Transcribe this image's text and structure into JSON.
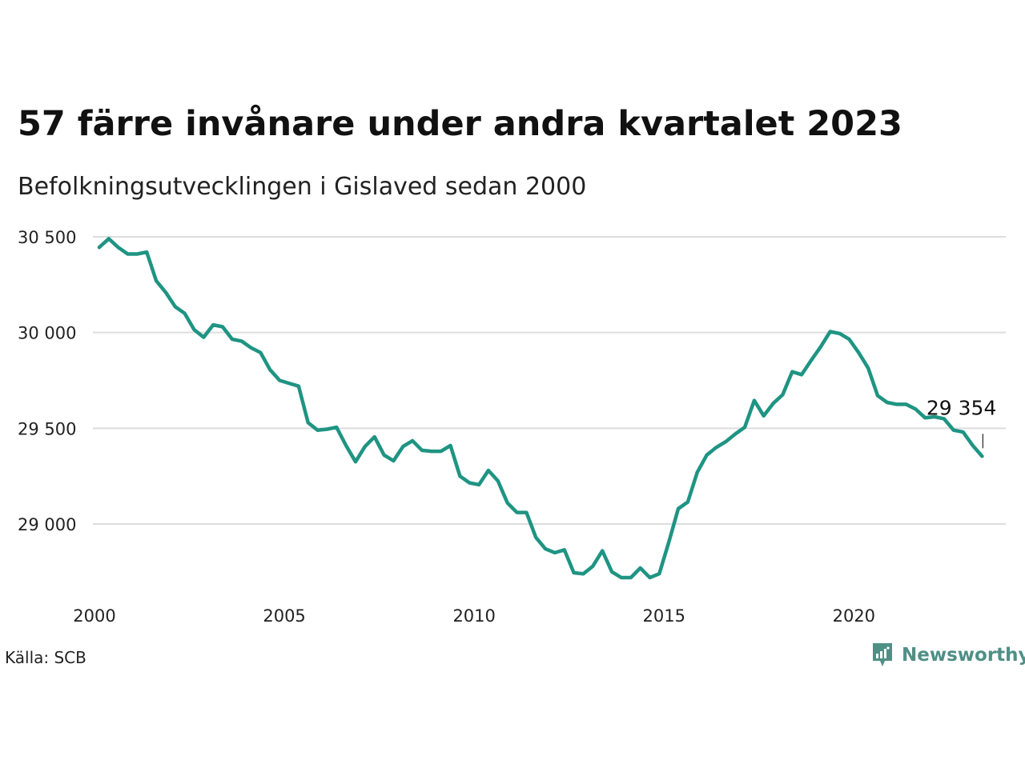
{
  "header": {
    "title": "57 färre invånare under andra kvartalet 2023",
    "subtitle": "Befolkningsutvecklingen i Gislaved sedan 2000"
  },
  "footer": {
    "source": "Källa: SCB",
    "brand": "Newsworthy",
    "brand_icon": "newsworthy-logo-icon"
  },
  "colors": {
    "line": "#1f9483",
    "grid": "#dddddd",
    "brand": "#4f8f86"
  },
  "chart_data": {
    "type": "line",
    "title": "57 färre invånare under andra kvartalet 2023",
    "subtitle": "Befolkningsutvecklingen i Gislaved sedan 2000",
    "xlabel": "",
    "ylabel": "",
    "xlim": [
      2000,
      2024
    ],
    "ylim": [
      28700,
      30550
    ],
    "grid": "horizontal",
    "x_ticks": [
      2000,
      2005,
      2010,
      2015,
      2020
    ],
    "x_tick_labels": [
      "2000",
      "2005",
      "2010",
      "2015",
      "2020"
    ],
    "y_ticks": [
      29000,
      29500,
      30000,
      30500
    ],
    "y_tick_labels": [
      "29 000",
      "29 500",
      "30 000",
      "30 500"
    ],
    "series": [
      {
        "x": [
          2000.125,
          2000.375,
          2000.625,
          2000.875,
          2001.125,
          2001.375,
          2001.625,
          2001.875,
          2002.125,
          2002.375,
          2002.625,
          2002.875,
          2003.125,
          2003.375,
          2003.625,
          2003.875,
          2004.125,
          2004.375,
          2004.625,
          2004.875,
          2005.125,
          2005.375,
          2005.625,
          2005.875,
          2006.125,
          2006.375,
          2006.625,
          2006.875,
          2007.125,
          2007.375,
          2007.625,
          2007.875,
          2008.125,
          2008.375,
          2008.625,
          2008.875,
          2009.125,
          2009.375,
          2009.625,
          2009.875,
          2010.125,
          2010.375,
          2010.625,
          2010.875,
          2011.125,
          2011.375,
          2011.625,
          2011.875,
          2012.125,
          2012.375,
          2012.625,
          2012.875,
          2013.125,
          2013.375,
          2013.625,
          2013.875,
          2014.125,
          2014.375,
          2014.625,
          2014.875,
          2015.125,
          2015.375,
          2015.625,
          2015.875,
          2016.125,
          2016.375,
          2016.625,
          2016.875,
          2017.125,
          2017.375,
          2017.625,
          2017.875,
          2018.125,
          2018.375,
          2018.625,
          2018.875,
          2019.125,
          2019.375,
          2019.625,
          2019.875,
          2020.125,
          2020.375,
          2020.625,
          2020.875,
          2021.125,
          2021.375,
          2021.625,
          2021.875,
          2022.125,
          2022.375,
          2022.625,
          2022.875,
          2023.125,
          2023.375
        ],
        "values": [
          30445,
          30490,
          30445,
          30410,
          30410,
          30420,
          30270,
          30210,
          30135,
          30100,
          30015,
          29975,
          30040,
          30030,
          29965,
          29955,
          29920,
          29895,
          29805,
          29750,
          29735,
          29720,
          29530,
          29490,
          29495,
          29505,
          29410,
          29325,
          29405,
          29455,
          29360,
          29330,
          29405,
          29435,
          29385,
          29380,
          29380,
          29410,
          29250,
          29215,
          29205,
          29280,
          29225,
          29110,
          29060,
          29060,
          28930,
          28870,
          28850,
          28865,
          28745,
          28740,
          28780,
          28860,
          28750,
          28720,
          28720,
          28770,
          28720,
          28740,
          28905,
          29080,
          29115,
          29270,
          29360,
          29400,
          29430,
          29470,
          29505,
          29645,
          29565,
          29630,
          29675,
          29795,
          29780,
          29855,
          29925,
          30005,
          29995,
          29965,
          29895,
          29815,
          29670,
          29635,
          29625,
          29625,
          29600,
          29555,
          29560,
          29550,
          29490,
          29480,
          29411,
          29354
        ]
      }
    ],
    "annotations": [
      {
        "text": "29 354",
        "x": 2023.375,
        "y": 29354
      }
    ]
  }
}
